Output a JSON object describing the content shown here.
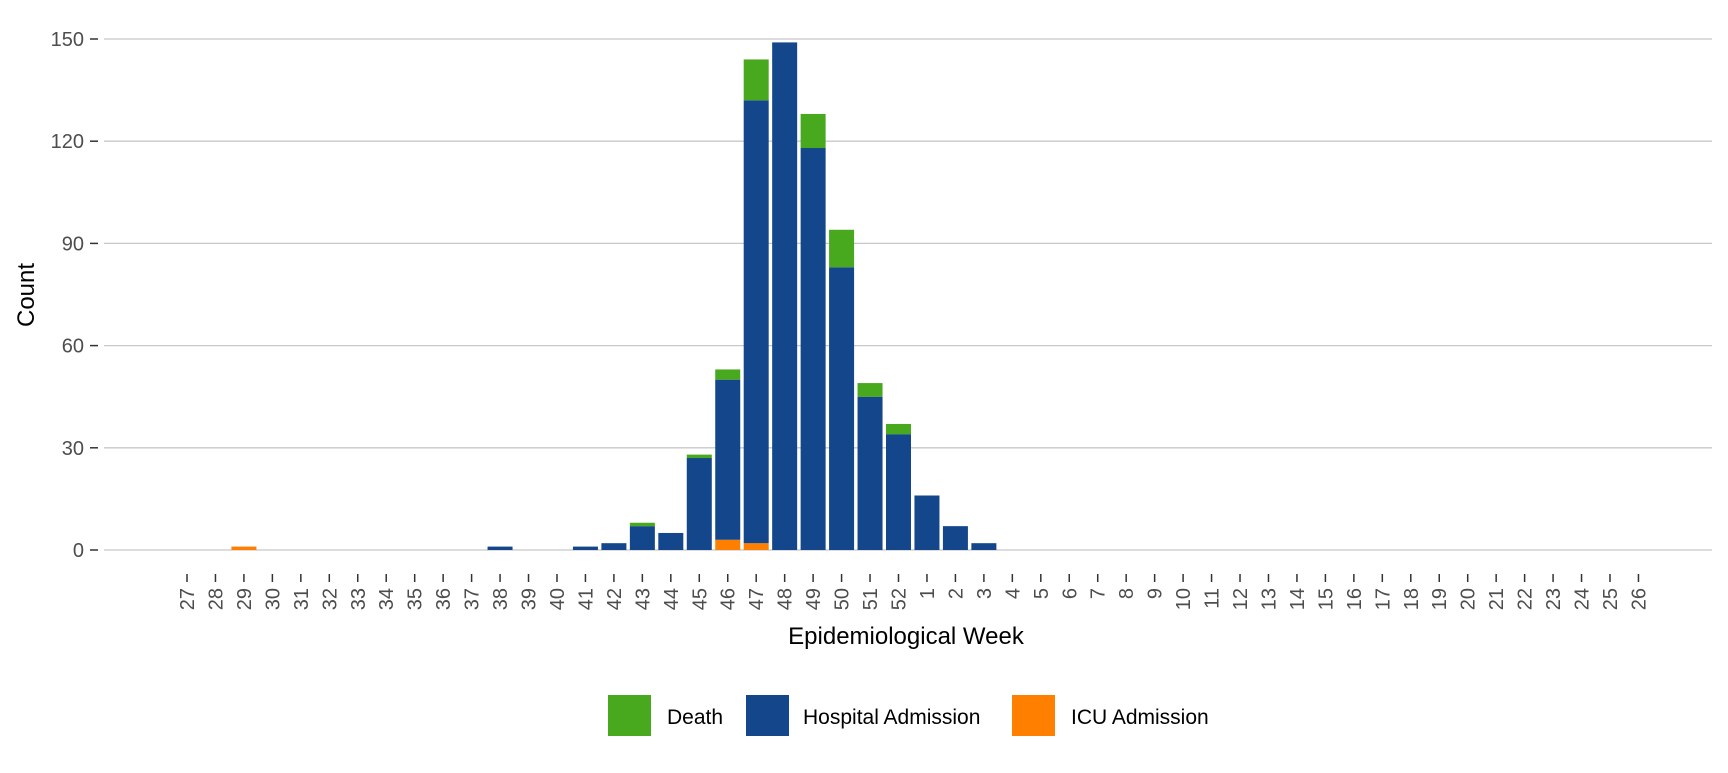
{
  "chart_data": {
    "type": "bar",
    "stacked": true,
    "xlabel": "Epidemiological Week",
    "ylabel": "Count",
    "ylim": [
      0,
      155
    ],
    "yticks": [
      0,
      30,
      60,
      90,
      120,
      150
    ],
    "grid": "horizontal major",
    "legend_position": "bottom",
    "categories": [
      "27",
      "28",
      "29",
      "30",
      "31",
      "32",
      "33",
      "34",
      "35",
      "36",
      "37",
      "38",
      "39",
      "40",
      "41",
      "42",
      "43",
      "44",
      "45",
      "46",
      "47",
      "48",
      "49",
      "50",
      "51",
      "52",
      "1",
      "2",
      "3",
      "4",
      "5",
      "6",
      "7",
      "8",
      "9",
      "10",
      "11",
      "12",
      "13",
      "14",
      "15",
      "16",
      "17",
      "18",
      "19",
      "20",
      "21",
      "22",
      "23",
      "24",
      "25",
      "26"
    ],
    "series": [
      {
        "name": "ICU Admission",
        "color": "#FF7F00",
        "values": [
          0,
          0,
          1,
          0,
          0,
          0,
          0,
          0,
          0,
          0,
          0,
          0,
          0,
          0,
          0,
          0,
          0,
          0,
          0,
          3,
          2,
          0,
          0,
          0,
          0,
          0,
          0,
          0,
          0,
          0,
          0,
          0,
          0,
          0,
          0,
          0,
          0,
          0,
          0,
          0,
          0,
          0,
          0,
          0,
          0,
          0,
          0,
          0,
          0,
          0,
          0,
          0
        ]
      },
      {
        "name": "Hospital Admission",
        "color": "#13468A",
        "values": [
          0,
          0,
          0,
          0,
          0,
          0,
          0,
          0,
          0,
          0,
          0,
          1,
          0,
          0,
          1,
          2,
          7,
          5,
          27,
          47,
          130,
          149,
          118,
          83,
          45,
          34,
          16,
          7,
          2,
          0,
          0,
          0,
          0,
          0,
          0,
          0,
          0,
          0,
          0,
          0,
          0,
          0,
          0,
          0,
          0,
          0,
          0,
          0,
          0,
          0,
          0,
          0
        ]
      },
      {
        "name": "Death",
        "color": "#48A81E",
        "values": [
          0,
          0,
          0,
          0,
          0,
          0,
          0,
          0,
          0,
          0,
          0,
          0,
          0,
          0,
          0,
          0,
          1,
          0,
          1,
          3,
          12,
          0,
          10,
          11,
          4,
          3,
          0,
          0,
          0,
          0,
          0,
          0,
          0,
          0,
          0,
          0,
          0,
          0,
          0,
          0,
          0,
          0,
          0,
          0,
          0,
          0,
          0,
          0,
          0,
          0,
          0,
          0
        ]
      }
    ],
    "legend_order": [
      "Death",
      "Hospital Admission",
      "ICU Admission"
    ]
  }
}
